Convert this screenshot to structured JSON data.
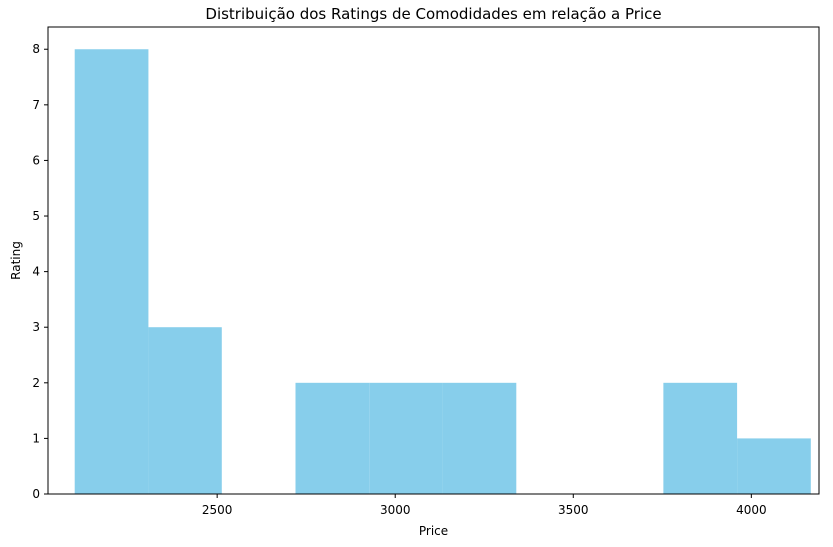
{
  "chart_data": {
    "type": "bar",
    "title": "Distribuição dos Ratings de Comodidades em relação a Price",
    "xlabel": "Price",
    "ylabel": "Rating",
    "bar_color": "#87CEEB",
    "xlim": [
      2042,
      2220
    ],
    "ylim": [
      0,
      8.4
    ],
    "xlim_true": [
      2025,
      4190
    ],
    "xticks": [
      2500,
      3000,
      3500,
      4000
    ],
    "yticks": [
      0,
      1,
      2,
      3,
      4,
      5,
      6,
      7,
      8
    ],
    "bins": [
      {
        "x0": 2100,
        "x1": 2307,
        "value": 8
      },
      {
        "x0": 2307,
        "x1": 2513,
        "value": 3
      },
      {
        "x0": 2513,
        "x1": 2720,
        "value": 0
      },
      {
        "x0": 2720,
        "x1": 2927,
        "value": 2
      },
      {
        "x0": 2927,
        "x1": 3133,
        "value": 2
      },
      {
        "x0": 3133,
        "x1": 3340,
        "value": 2
      },
      {
        "x0": 3340,
        "x1": 3547,
        "value": 0
      },
      {
        "x0": 3547,
        "x1": 3753,
        "value": 0
      },
      {
        "x0": 3753,
        "x1": 3960,
        "value": 2
      },
      {
        "x0": 3960,
        "x1": 4167,
        "value": 1
      }
    ],
    "grid": false,
    "legend": "none"
  }
}
